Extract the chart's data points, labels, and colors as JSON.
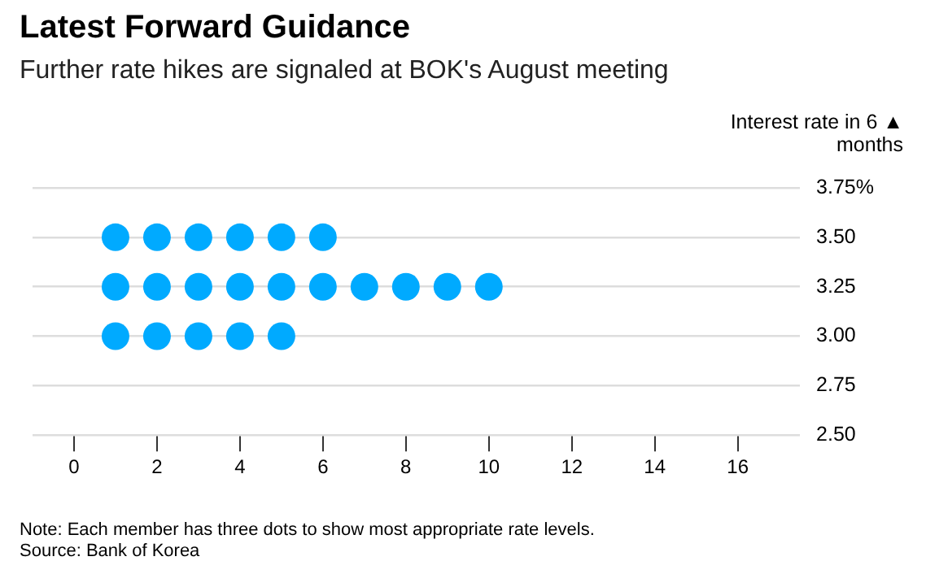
{
  "chart_data": {
    "type": "scatter",
    "title": "Latest Forward Guidance",
    "subtitle": "Further rate hikes are signaled at BOK's August meeting",
    "ylabel": "Interest rate in 6 ▲ months",
    "series": [
      {
        "color": "#00aaff",
        "x": [
          1,
          2,
          3,
          4,
          5,
          6
        ],
        "values": [
          3.5,
          3.5,
          3.5,
          3.5,
          3.5,
          3.5
        ]
      },
      {
        "color": "#00aaff",
        "x": [
          1,
          2,
          3,
          4,
          5,
          6,
          7,
          8,
          9,
          10
        ],
        "values": [
          3.25,
          3.25,
          3.25,
          3.25,
          3.25,
          3.25,
          3.25,
          3.25,
          3.25,
          3.25
        ]
      },
      {
        "color": "#00aaff",
        "x": [
          1,
          2,
          3,
          4,
          5
        ],
        "values": [
          3.0,
          3.0,
          3.0,
          3.0,
          3.0
        ]
      }
    ],
    "xlim": [
      -1,
      17.5
    ],
    "xticks": [
      0,
      2,
      4,
      6,
      8,
      10,
      12,
      14,
      16
    ],
    "ylim": [
      2.5,
      3.75
    ],
    "yticks": [
      {
        "value": 2.5,
        "label": "2.50"
      },
      2.75,
      {
        "value": 3.0,
        "label": "3.00"
      },
      3.25,
      {
        "value": 3.5,
        "label": "3.50"
      },
      {
        "value": 3.75,
        "label": "3.75%"
      }
    ],
    "grid": "y",
    "legend": false,
    "marker": "circle",
    "annotations": [
      "Note: Each member has three dots to show most appropriate rate levels.",
      "Source: Bank of Korea"
    ]
  }
}
